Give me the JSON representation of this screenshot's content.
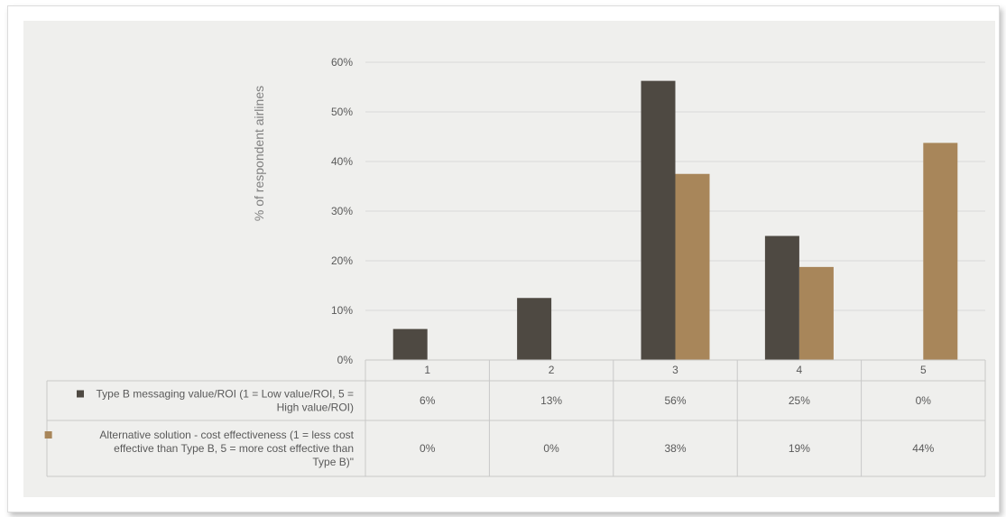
{
  "chart_data": {
    "type": "bar",
    "ylabel": "% of respondent airlines",
    "categories": [
      "1",
      "2",
      "3",
      "4",
      "5"
    ],
    "ylim": [
      0,
      60
    ],
    "yticks": [
      "0%",
      "10%",
      "20%",
      "30%",
      "40%",
      "50%",
      "60%"
    ],
    "grid": true,
    "series": [
      {
        "name": "Type B messaging value/ROI (1 = Low value/ROI, 5 = High value/ROI)",
        "name_lines": [
          "Type B messaging value/ROI (1 = Low value/ROI, 5 =",
          "High value/ROI)"
        ],
        "values": [
          6.25,
          12.5,
          56.25,
          25,
          0
        ],
        "labels": [
          "6%",
          "13%",
          "56%",
          "25%",
          "0%"
        ],
        "color": "#4e4942"
      },
      {
        "name": "Alternative solution - cost effectiveness (1 = less cost effective than Type B, 5 = more cost effective than Type B)\"",
        "name_lines": [
          "Alternative solution - cost effectiveness (1 = less cost",
          "effective than Type B, 5 = more cost effective than",
          "Type B)\""
        ],
        "values": [
          0,
          0,
          37.5,
          18.75,
          43.75
        ],
        "labels": [
          "0%",
          "0%",
          "38%",
          "19%",
          "44%"
        ],
        "color": "#a8865a"
      }
    ]
  }
}
